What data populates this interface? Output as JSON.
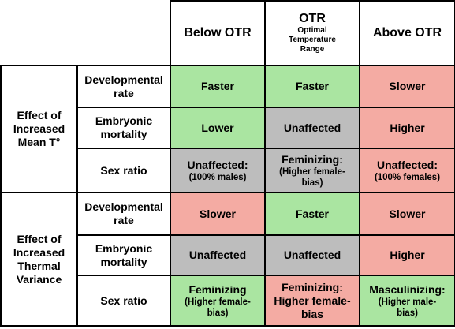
{
  "header": {
    "columns": [
      {
        "title": "Below OTR"
      },
      {
        "title": "OTR",
        "note": [
          "Optimal",
          "Temperature",
          "Range"
        ]
      },
      {
        "title": "Above OTR"
      }
    ]
  },
  "groups": [
    {
      "label": [
        "Effect of",
        "Increased",
        "Mean T°"
      ],
      "rows": [
        {
          "label": [
            "Developmental",
            "rate"
          ],
          "cells": [
            {
              "text": [
                "Faster"
              ],
              "color": "#aae5a1"
            },
            {
              "text": [
                "Faster"
              ],
              "color": "#aae5a1"
            },
            {
              "text": [
                "Slower"
              ],
              "color": "#f4aba3"
            }
          ]
        },
        {
          "label": [
            "Embryonic",
            "mortality"
          ],
          "cells": [
            {
              "text": [
                "Lower"
              ],
              "color": "#aae5a1"
            },
            {
              "text": [
                "Unaffected"
              ],
              "color": "#bdbdbd"
            },
            {
              "text": [
                "Higher"
              ],
              "color": "#f4aba3"
            }
          ]
        },
        {
          "label": [
            "Sex ratio"
          ],
          "cells": [
            {
              "text": [
                "Unaffected:"
              ],
              "note": [
                "(100% males)"
              ],
              "color": "#bdbdbd"
            },
            {
              "text": [
                "Feminizing:"
              ],
              "note": [
                "(Higher female-",
                "bias)"
              ],
              "color": "#bdbdbd"
            },
            {
              "text": [
                "Unaffected:"
              ],
              "note": [
                "(100% females)"
              ],
              "color": "#f4aba3"
            }
          ]
        }
      ]
    },
    {
      "label": [
        "Effect of",
        "Increased",
        "Thermal",
        "Variance"
      ],
      "rows": [
        {
          "label": [
            "Developmental",
            "rate"
          ],
          "cells": [
            {
              "text": [
                "Slower"
              ],
              "color": "#f4aba3"
            },
            {
              "text": [
                "Faster"
              ],
              "color": "#aae5a1"
            },
            {
              "text": [
                "Slower"
              ],
              "color": "#f4aba3"
            }
          ]
        },
        {
          "label": [
            "Embryonic",
            "mortality"
          ],
          "cells": [
            {
              "text": [
                "Unaffected"
              ],
              "color": "#bdbdbd"
            },
            {
              "text": [
                "Unaffected"
              ],
              "color": "#bdbdbd"
            },
            {
              "text": [
                "Higher"
              ],
              "color": "#f4aba3"
            }
          ]
        },
        {
          "label": [
            "Sex ratio"
          ],
          "cells": [
            {
              "text": [
                "Feminizing"
              ],
              "note": [
                "(Higher female-",
                "bias)"
              ],
              "color": "#aae5a1"
            },
            {
              "text": [
                "Feminizing:",
                "Higher female-",
                "bias"
              ],
              "color": "#f4aba3"
            },
            {
              "text": [
                "Masculinizing:"
              ],
              "note": [
                "(Higher male-",
                "bias)"
              ],
              "color": "#aae5a1"
            }
          ]
        }
      ]
    }
  ]
}
